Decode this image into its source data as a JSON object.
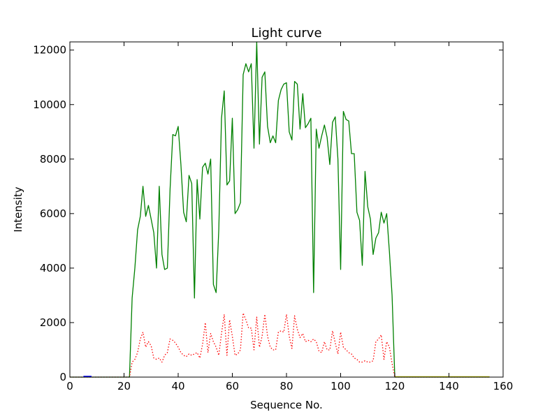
{
  "chart_data": {
    "type": "line",
    "title": "Light curve",
    "xlabel": "Sequence No.",
    "ylabel": "Intensity",
    "xlim": [
      0,
      160
    ],
    "ylim": [
      0,
      12300
    ],
    "xticks": [
      "0",
      "20",
      "40",
      "60",
      "80",
      "100",
      "120",
      "140",
      "160"
    ],
    "yticks": [
      "0",
      "2000",
      "4000",
      "6000",
      "8000",
      "10000",
      "12000"
    ],
    "grid": false,
    "legend": "none",
    "series": [
      {
        "color": "#008000",
        "style": "solid",
        "x": [
          0,
          22,
          23,
          24,
          25,
          26,
          27,
          28,
          29,
          30,
          31,
          32,
          33,
          34,
          35,
          36,
          37,
          38,
          39,
          40,
          41,
          42,
          43,
          44,
          45,
          46,
          47,
          48,
          49,
          50,
          51,
          52,
          53,
          54,
          55,
          56,
          57,
          58,
          59,
          60,
          61,
          62,
          63,
          64,
          65,
          66,
          67,
          68,
          69,
          70,
          71,
          72,
          73,
          74,
          75,
          76,
          77,
          78,
          79,
          80,
          81,
          82,
          83,
          84,
          85,
          86,
          87,
          88,
          89,
          90,
          91,
          92,
          93,
          94,
          95,
          96,
          97,
          98,
          99,
          100,
          101,
          102,
          103,
          104,
          105,
          106,
          107,
          108,
          109,
          110,
          111,
          112,
          113,
          114,
          115,
          116,
          117,
          118,
          119,
          120,
          155
        ],
        "y": [
          0,
          0,
          2900,
          4000,
          5400,
          5900,
          7000,
          5900,
          6300,
          5800,
          5300,
          4000,
          7000,
          4500,
          3950,
          4000,
          6900,
          8900,
          8850,
          9200,
          7800,
          6050,
          5700,
          7400,
          7100,
          2900,
          7250,
          5800,
          7700,
          7850,
          7450,
          8000,
          3400,
          3100,
          5400,
          9500,
          10500,
          7050,
          7200,
          9500,
          6000,
          6150,
          6400,
          11100,
          11500,
          11200,
          11500,
          8400,
          12300,
          8550,
          11000,
          11200,
          9200,
          8600,
          8850,
          8600,
          10150,
          10550,
          10750,
          10800,
          9000,
          8700,
          10850,
          10750,
          9100,
          10400,
          9150,
          9300,
          9500,
          3100,
          9100,
          8400,
          8850,
          9250,
          8800,
          7800,
          9350,
          9550,
          8000,
          3950,
          9750,
          9450,
          9400,
          8200,
          8200,
          6050,
          5750,
          4100,
          7550,
          6250,
          5800,
          4500,
          5100,
          5300,
          6050,
          5650,
          6000,
          4600,
          3000,
          0,
          0
        ]
      },
      {
        "color": "#ff0000",
        "style": "dotted",
        "x": [
          0,
          22,
          23,
          24,
          25,
          26,
          27,
          28,
          29,
          30,
          31,
          32,
          33,
          34,
          35,
          36,
          37,
          38,
          39,
          40,
          41,
          42,
          43,
          44,
          45,
          46,
          47,
          48,
          49,
          50,
          51,
          52,
          53,
          54,
          55,
          56,
          57,
          58,
          59,
          60,
          61,
          62,
          63,
          64,
          65,
          66,
          67,
          68,
          69,
          70,
          71,
          72,
          73,
          74,
          75,
          76,
          77,
          78,
          79,
          80,
          81,
          82,
          83,
          84,
          85,
          86,
          87,
          88,
          89,
          90,
          91,
          92,
          93,
          94,
          95,
          96,
          97,
          98,
          99,
          100,
          101,
          102,
          103,
          104,
          105,
          106,
          107,
          108,
          109,
          110,
          111,
          112,
          113,
          114,
          115,
          116,
          117,
          118,
          119,
          120,
          155
        ],
        "y": [
          0,
          0,
          550,
          650,
          900,
          1400,
          1650,
          1100,
          1300,
          1150,
          700,
          650,
          700,
          550,
          800,
          900,
          1400,
          1350,
          1250,
          1100,
          900,
          800,
          750,
          850,
          800,
          850,
          900,
          700,
          1200,
          2000,
          900,
          1600,
          1300,
          1100,
          800,
          1600,
          2300,
          800,
          2100,
          1500,
          800,
          850,
          1000,
          2350,
          2100,
          1800,
          1800,
          1000,
          2200,
          1100,
          1500,
          2300,
          1500,
          1100,
          1000,
          1000,
          1650,
          1700,
          1650,
          2300,
          1500,
          1050,
          2250,
          1750,
          1450,
          1600,
          1300,
          1350,
          1300,
          1400,
          1300,
          950,
          900,
          1300,
          1000,
          1000,
          1700,
          1250,
          850,
          1650,
          1100,
          1000,
          900,
          850,
          700,
          650,
          550,
          550,
          600,
          550,
          550,
          600,
          1300,
          1400,
          1550,
          650,
          1300,
          1100,
          500,
          0,
          0
        ]
      },
      {
        "color": "#0000ff",
        "style": "solid",
        "x": [
          5,
          8
        ],
        "y": [
          30,
          30
        ]
      },
      {
        "color": "#c8c800",
        "style": "solid",
        "x": [
          120,
          155
        ],
        "y": [
          15,
          15
        ]
      }
    ]
  }
}
